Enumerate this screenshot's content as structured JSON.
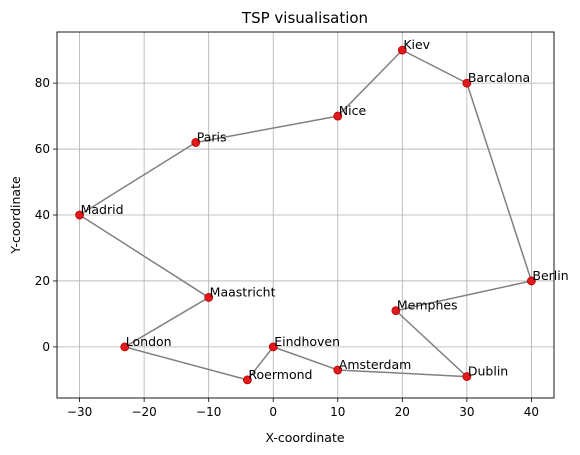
{
  "chart_data": {
    "type": "scatter",
    "title": "TSP visualisation",
    "xlabel": "X-coordinate",
    "ylabel": "Y-coordinate",
    "xlim": [
      -33.5,
      43.5
    ],
    "ylim": [
      -15.5,
      95.5
    ],
    "xticks": [
      -30,
      -20,
      -10,
      0,
      10,
      20,
      30,
      40
    ],
    "yticks": [
      0,
      20,
      40,
      60,
      80
    ],
    "xtick_labels": [
      "−30",
      "−20",
      "−10",
      "0",
      "10",
      "20",
      "30",
      "40"
    ],
    "ytick_labels": [
      "0",
      "20",
      "40",
      "60",
      "80"
    ],
    "grid": true,
    "colors": {
      "point": "#e31a1c",
      "point_edge": "#b80000",
      "route": "#808080",
      "grid": "#b0b0b0"
    },
    "cities": [
      {
        "name": "Kiev",
        "x": 20,
        "y": 90
      },
      {
        "name": "Barcalona",
        "x": 30,
        "y": 80
      },
      {
        "name": "Nice",
        "x": 10,
        "y": 70
      },
      {
        "name": "Paris",
        "x": -12,
        "y": 62
      },
      {
        "name": "Madrid",
        "x": -30,
        "y": 40
      },
      {
        "name": "Berlin",
        "x": 40,
        "y": 20
      },
      {
        "name": "Maastricht",
        "x": -10,
        "y": 15
      },
      {
        "name": "Memphes",
        "x": 19,
        "y": 11
      },
      {
        "name": "London",
        "x": -23,
        "y": 0
      },
      {
        "name": "Eindhoven",
        "x": 0,
        "y": 0
      },
      {
        "name": "Amsterdam",
        "x": 10,
        "y": -7
      },
      {
        "name": "Dublin",
        "x": 30,
        "y": -9
      },
      {
        "name": "Roermond",
        "x": -4,
        "y": -10
      }
    ],
    "route": [
      "Kiev",
      "Barcalona",
      "Berlin",
      "Memphes",
      "Dublin",
      "Amsterdam",
      "Eindhoven",
      "Roermond",
      "London",
      "Maastricht",
      "Madrid",
      "Paris",
      "Nice",
      "Kiev"
    ]
  }
}
